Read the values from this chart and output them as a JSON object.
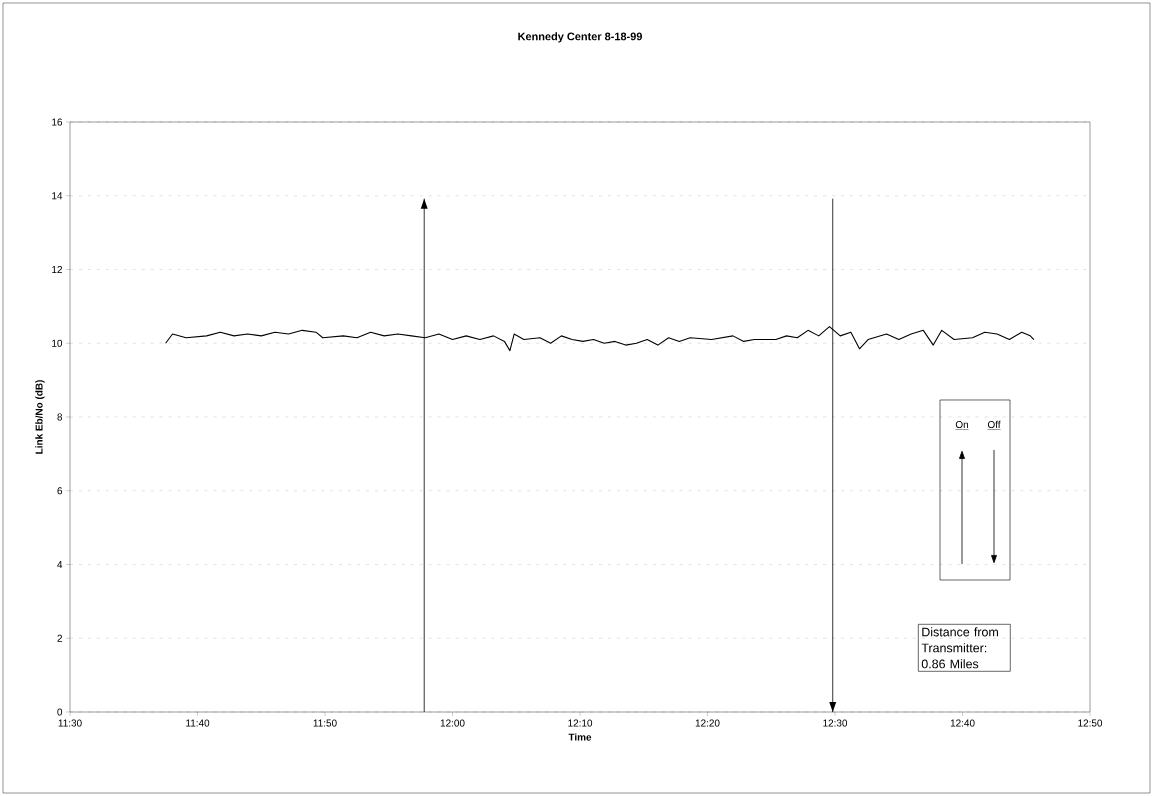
{
  "chart_data": {
    "type": "line",
    "title": "Kennedy Center 8-18-99",
    "xlabel": "Time",
    "ylabel": "Link Eb/No (dB)",
    "xlim": [
      11.5,
      12.8333
    ],
    "ylim": [
      0,
      16
    ],
    "xticks": [
      {
        "value": 11.5,
        "label": "11:30"
      },
      {
        "value": 11.6667,
        "label": "11:40"
      },
      {
        "value": 11.8333,
        "label": "11:50"
      },
      {
        "value": 12.0,
        "label": "12:00"
      },
      {
        "value": 12.1667,
        "label": "12:10"
      },
      {
        "value": 12.3333,
        "label": "12:20"
      },
      {
        "value": 12.5,
        "label": "12:30"
      },
      {
        "value": 12.6667,
        "label": "12:40"
      },
      {
        "value": 12.8333,
        "label": "12:50"
      }
    ],
    "yticks": [
      0,
      2,
      4,
      6,
      8,
      10,
      12,
      14,
      16
    ],
    "grid": "y",
    "marker": "none",
    "line_style": "solid",
    "x": [
      11.625,
      11.634,
      11.6518,
      11.6786,
      11.6965,
      11.7144,
      11.7321,
      11.75,
      11.7679,
      11.7857,
      11.8036,
      11.8215,
      11.8304,
      11.8572,
      11.8751,
      11.8929,
      11.9107,
      11.9286,
      11.9464,
      11.9643,
      11.9822,
      12.0,
      12.0179,
      12.0358,
      12.0536,
      12.0679,
      12.075,
      12.0806,
      12.0932,
      12.1143,
      12.1283,
      12.1423,
      12.1563,
      12.1704,
      12.1843,
      12.1984,
      12.2124,
      12.2264,
      12.2404,
      12.2545,
      12.2684,
      12.2825,
      12.2965,
      12.3105,
      12.3386,
      12.3666,
      12.3806,
      12.3946,
      12.4227,
      12.4366,
      12.4507,
      12.4647,
      12.4787,
      12.4927,
      12.5068,
      12.5207,
      12.532,
      12.5432,
      12.5673,
      12.5834,
      12.5995,
      12.6154,
      12.6284,
      12.6395,
      12.6556,
      12.6797,
      12.6958,
      12.7118,
      12.7279,
      12.744,
      12.7552,
      12.76
    ],
    "series": [
      {
        "color": "#000000",
        "values": [
          10.0,
          10.25,
          10.15,
          10.2,
          10.3,
          10.2,
          10.25,
          10.2,
          10.3,
          10.25,
          10.35,
          10.3,
          10.15,
          10.2,
          10.15,
          10.3,
          10.2,
          10.25,
          10.2,
          10.15,
          10.25,
          10.1,
          10.2,
          10.1,
          10.2,
          10.05,
          9.8,
          10.25,
          10.1,
          10.15,
          10.0,
          10.2,
          10.1,
          10.05,
          10.1,
          10.0,
          10.05,
          9.95,
          10.0,
          10.1,
          9.95,
          10.15,
          10.05,
          10.15,
          10.1,
          10.2,
          10.05,
          10.1,
          10.1,
          10.2,
          10.15,
          10.35,
          10.2,
          10.45,
          10.2,
          10.3,
          9.85,
          10.1,
          10.25,
          10.1,
          10.25,
          10.35,
          9.95,
          10.35,
          10.1,
          10.15,
          10.3,
          10.25,
          10.1,
          10.3,
          10.2,
          10.1
        ]
      }
    ],
    "ref_lines": [
      {
        "axis": "x",
        "value": 11.963,
        "color": "#000000"
      },
      {
        "axis": "x",
        "value": 12.497,
        "color": "#000000"
      }
    ],
    "annotations": [
      "On",
      "Off",
      "Distance from Transmitter: 0.86 Miles"
    ]
  }
}
